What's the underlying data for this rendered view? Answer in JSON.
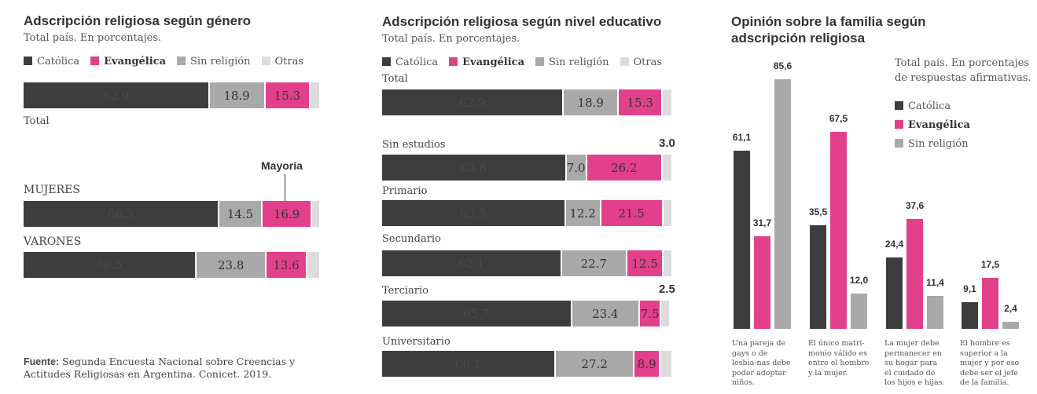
{
  "colors": {
    "catolica": "#3d3d3d",
    "evangelica": "#e2408b",
    "sin_religion": "#a9a9a9",
    "otras": "#dcdcdc",
    "dark_label": "#4a4a4a"
  },
  "legend": [
    "Católica",
    "Evangélica",
    "Sin religión",
    "Otras"
  ],
  "chart_data": [
    {
      "type": "bar",
      "orientation": "horizontal",
      "stacked": true,
      "title": "Adscripción religiosa según género",
      "subtitle": "Total país. En porcentajes.",
      "xlim": [
        0,
        100
      ],
      "series_order": [
        "Católica",
        "Sin religión",
        "Evangélica",
        "Otras"
      ],
      "categories": [
        "Total",
        "MUJERES",
        "VARONES"
      ],
      "rows": [
        {
          "label": "Total",
          "values": [
            62.9,
            18.9,
            15.3,
            2.9
          ],
          "labels": [
            "62.9",
            "18.9",
            "15.3",
            ""
          ]
        },
        {
          "label": "MUJERES",
          "values": [
            66.3,
            14.5,
            16.9,
            2.3
          ],
          "labels": [
            "66.3",
            "14.5",
            "16.9",
            ""
          ]
        },
        {
          "label": "VARONES",
          "values": [
            58.5,
            23.8,
            13.6,
            4.1
          ],
          "labels": [
            "58.5",
            "23.8",
            "13.6",
            ""
          ]
        }
      ],
      "annotation": "Mayoría"
    },
    {
      "type": "bar",
      "orientation": "horizontal",
      "stacked": true,
      "title": "Adscripción religiosa según nivel educativo",
      "subtitle": "Total país. En porcentajes.",
      "xlim": [
        0,
        100
      ],
      "series_order": [
        "Católica",
        "Sin religión",
        "Evangélica",
        "Otras"
      ],
      "rows": [
        {
          "label": "Total",
          "values": [
            62.9,
            18.9,
            15.3,
            2.9
          ],
          "labels": [
            "62.9",
            "18.9",
            "15.3",
            ""
          ],
          "outside": ""
        },
        {
          "label": "Sin estudios",
          "values": [
            63.8,
            7.0,
            26.2,
            3.0
          ],
          "labels": [
            "63.8",
            "7.0",
            "26.2",
            ""
          ],
          "outside": "3.0"
        },
        {
          "label": "Primario",
          "values": [
            63.5,
            12.2,
            21.5,
            2.8
          ],
          "labels": [
            "63.5",
            "12.2",
            "21.5",
            ""
          ],
          "outside": ""
        },
        {
          "label": "Secundario",
          "values": [
            62.1,
            22.7,
            12.5,
            2.7
          ],
          "labels": [
            "62.1",
            "22.7",
            "12.5",
            ""
          ],
          "outside": ""
        },
        {
          "label": "Terciario",
          "values": [
            65.7,
            23.4,
            7.5,
            2.5
          ],
          "labels": [
            "65.7",
            "23.4",
            "7.5",
            ""
          ],
          "outside": "2.5"
        },
        {
          "label": "Universitario",
          "values": [
            60.1,
            27.2,
            8.9,
            3.8
          ],
          "labels": [
            "60.1",
            "27.2",
            "8.9",
            ""
          ],
          "outside": ""
        }
      ]
    },
    {
      "type": "bar",
      "orientation": "vertical",
      "title_line1": "Opinión sobre la familia según",
      "title_line2": "adscripción religiosa",
      "subtitle_line1": "Total país. En porcentajes",
      "subtitle_line2": "de respuestas afirmativas.",
      "ylim": [
        0,
        85.6
      ],
      "series": [
        {
          "name": "Católica",
          "values": [
            61.1,
            35.5,
            24.4,
            9.1
          ],
          "labels": [
            "61,1",
            "35,5",
            "24,4",
            "9,1"
          ]
        },
        {
          "name": "Evangélica",
          "values": [
            31.7,
            67.5,
            37.6,
            17.5
          ],
          "labels": [
            "31,7",
            "67,5",
            "37,6",
            "17,5"
          ]
        },
        {
          "name": "Sin religión",
          "values": [
            85.6,
            12.0,
            11.4,
            2.4
          ],
          "labels": [
            "85,6",
            "12,0",
            "11,4",
            "2,4"
          ]
        }
      ],
      "categories": [
        "Una pareja de gays o de lesbia-nas debe poder adoptar niños.",
        "El único matri-monio válido es entre el hombre y la mujer.",
        "La mujer debe permanecer en su hogar para el cuidado de los hijos e hijas.",
        "El hombre es superior a la mujer y por eso debe ser el jefe de la familia."
      ]
    }
  ],
  "source": {
    "label": "Fuente:",
    "text_line1": "Segunda Encuesta Nacional sobre Creencias y",
    "text_line2": "Actitudes Religiosas en Argentina. Conicet. 2019."
  }
}
